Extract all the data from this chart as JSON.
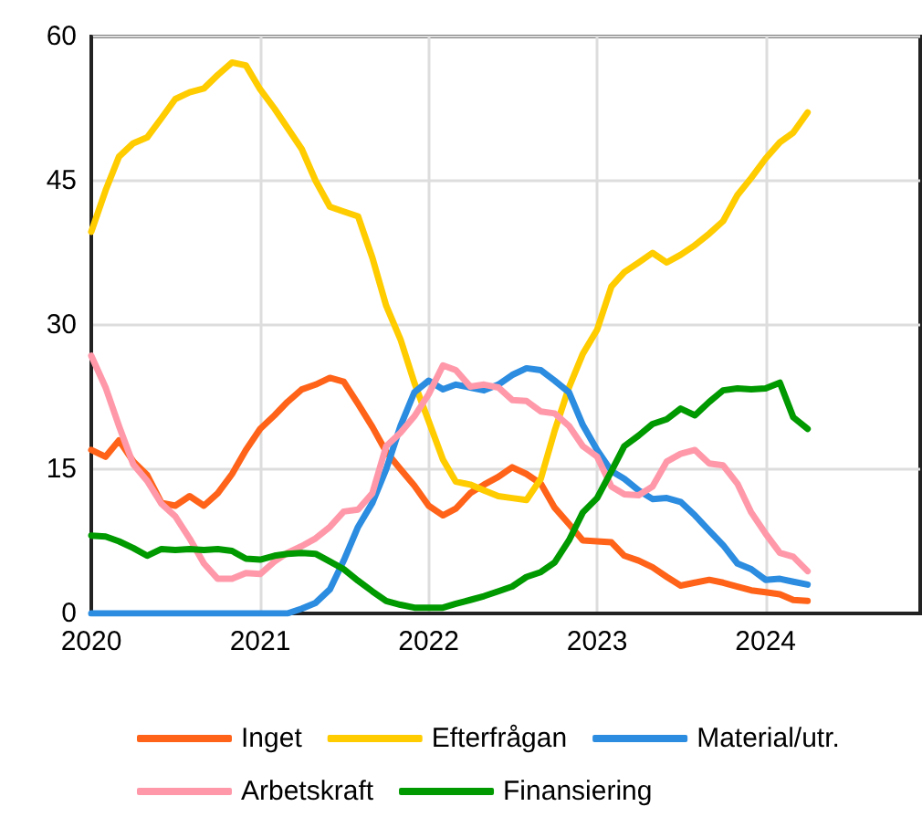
{
  "chart_data": {
    "type": "line",
    "x": [
      "2020-01",
      "2020-02",
      "2020-03",
      "2020-04",
      "2020-05",
      "2020-06",
      "2020-07",
      "2020-08",
      "2020-09",
      "2020-10",
      "2020-11",
      "2020-12",
      "2021-01",
      "2021-02",
      "2021-03",
      "2021-04",
      "2021-05",
      "2021-06",
      "2021-07",
      "2021-08",
      "2021-09",
      "2021-10",
      "2021-11",
      "2021-12",
      "2022-01",
      "2022-02",
      "2022-03",
      "2022-04",
      "2022-05",
      "2022-06",
      "2022-07",
      "2022-08",
      "2022-09",
      "2022-10",
      "2022-11",
      "2022-12",
      "2023-01",
      "2023-02",
      "2023-03",
      "2023-04",
      "2023-05",
      "2023-06",
      "2023-07",
      "2023-08",
      "2023-09",
      "2023-10",
      "2023-11",
      "2023-12",
      "2024-01",
      "2024-02",
      "2024-03",
      "2024-04"
    ],
    "xlim": [
      "2020-01",
      "2024-12"
    ],
    "xticks": [
      "2020",
      "2021",
      "2022",
      "2023",
      "2024"
    ],
    "ylim": [
      0,
      60
    ],
    "yticks": [
      0,
      15,
      30,
      45,
      60
    ],
    "grid": true,
    "legend": "bottom",
    "marker": "none",
    "line_style": "solid",
    "series": [
      {
        "name": "Inget",
        "color": "#ff6319",
        "values": [
          17,
          16.3,
          18,
          15.8,
          14.4,
          11.5,
          11.2,
          12.2,
          11.2,
          12.5,
          14.5,
          17,
          19.2,
          20.6,
          22,
          23.3,
          23.8,
          24.5,
          24.1,
          21.8,
          19.4,
          16.8,
          15,
          13.3,
          11.2,
          10.2,
          10.9,
          12.5,
          13.4,
          14.2,
          15.2,
          14.5,
          13.5,
          11,
          9.3,
          7.6,
          7.5,
          7.4,
          6,
          5.5,
          4.8,
          3.8,
          2.9,
          3.2,
          3.5,
          3.2,
          2.8,
          2.4,
          2.2,
          2,
          1.4,
          1.3
        ]
      },
      {
        "name": "Efterfrågan",
        "color": "#ffcc00",
        "values": [
          39.7,
          44,
          47.5,
          48.9,
          49.5,
          51.5,
          53.5,
          54.2,
          54.6,
          56,
          57.3,
          57,
          54.5,
          52.5,
          50.5,
          48.3,
          45,
          42.3,
          41.8,
          41.3,
          37,
          32,
          28.5,
          24,
          20,
          16,
          13.7,
          13.4,
          12.8,
          12.2,
          12,
          11.8,
          14,
          19,
          23.5,
          27,
          29.5,
          34,
          35.5,
          36.5,
          37.5,
          36.5,
          37.3,
          38.3,
          39.5,
          40.8,
          43.5,
          45.3,
          47.3,
          49,
          50,
          52.1
        ]
      },
      {
        "name": "Material/utr.",
        "color": "#2b8ce0",
        "values": [
          0,
          0,
          0,
          0,
          0,
          0,
          0,
          0,
          0,
          0,
          0,
          0,
          0,
          0,
          0,
          0.5,
          1.1,
          2.5,
          5.5,
          9,
          11.5,
          15,
          19.5,
          23,
          24.2,
          23.3,
          23.8,
          23.5,
          23.2,
          23.8,
          24.8,
          25.5,
          25.3,
          24.2,
          23,
          19.6,
          17,
          14.8,
          14,
          12.8,
          11.9,
          12,
          11.6,
          10.2,
          8.6,
          7.1,
          5.2,
          4.6,
          3.5,
          3.6,
          3.3,
          3
        ]
      },
      {
        "name": "Arbetskraft",
        "color": "#ff99aa",
        "values": [
          26.8,
          23.5,
          19.5,
          15.5,
          13.8,
          11.4,
          10.1,
          7.8,
          5.2,
          3.6,
          3.6,
          4.2,
          4.1,
          5.4,
          6.3,
          7,
          7.8,
          9,
          10.6,
          10.8,
          12.5,
          17.4,
          18.8,
          20.5,
          22.8,
          25.8,
          25.3,
          23.6,
          23.8,
          23.5,
          22.2,
          22.1,
          21,
          20.8,
          19.5,
          17.4,
          16.3,
          13.2,
          12.4,
          12.3,
          13.2,
          15.8,
          16.6,
          17,
          15.6,
          15.4,
          13.5,
          10.5,
          8.3,
          6.3,
          5.9,
          4.4
        ]
      },
      {
        "name": "Finansiering",
        "color": "#009900",
        "values": [
          8.1,
          8,
          7.5,
          6.8,
          6,
          6.7,
          6.6,
          6.7,
          6.6,
          6.7,
          6.5,
          5.7,
          5.6,
          6,
          6.2,
          6.3,
          6.2,
          5.4,
          4.6,
          3.4,
          2.3,
          1.3,
          0.9,
          0.6,
          0.6,
          0.6,
          1,
          1.4,
          1.8,
          2.3,
          2.8,
          3.8,
          4.3,
          5.3,
          7.6,
          10.5,
          12,
          14.8,
          17.4,
          18.5,
          19.7,
          20.2,
          21.3,
          20.6,
          22,
          23.2,
          23.4,
          23.3,
          23.4,
          24,
          20.4,
          19.2
        ]
      }
    ]
  }
}
